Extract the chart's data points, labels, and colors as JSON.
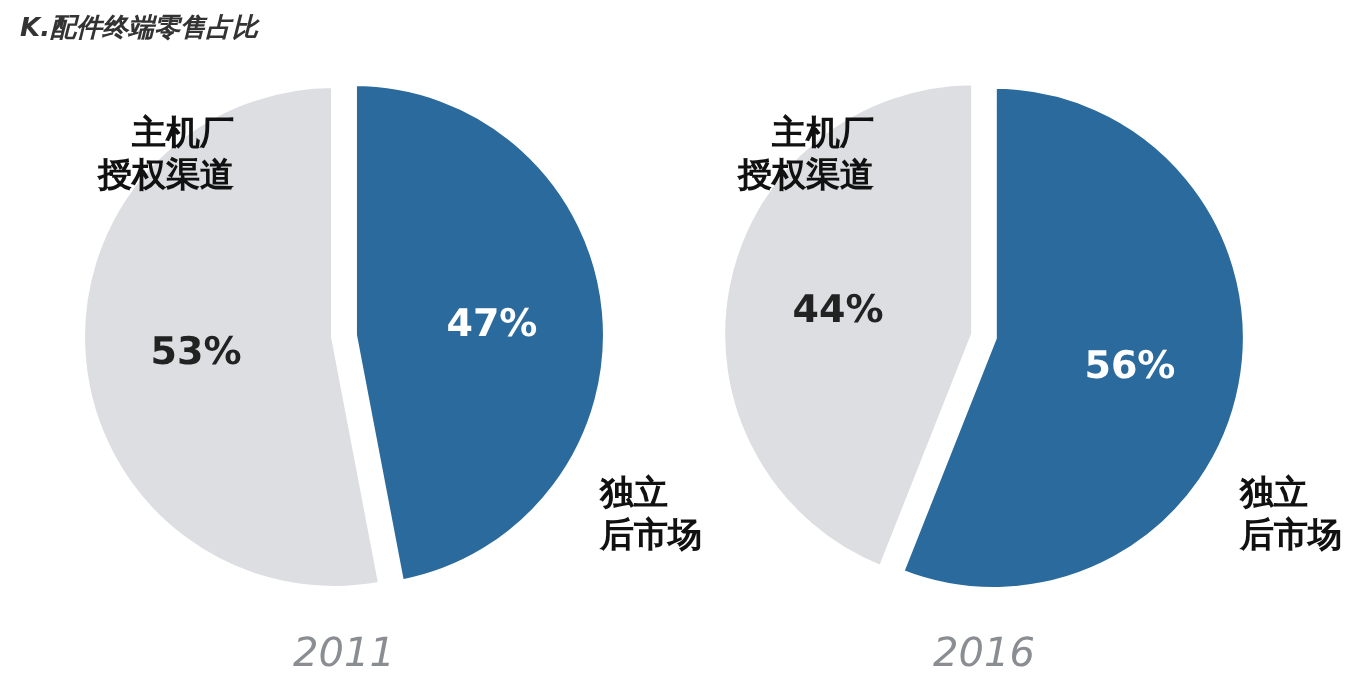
{
  "chart_data": [
    {
      "type": "pie",
      "title": "2011",
      "annotations": [
        "K.配件终端零售占比"
      ],
      "categories": [
        "主机厂授权渠道",
        "独立后市场"
      ],
      "values": [
        53,
        47
      ],
      "value_labels": [
        "53%",
        "47%"
      ],
      "colors": [
        "#dcdee1",
        "#2b6a9c"
      ]
    },
    {
      "type": "pie",
      "title": "2016",
      "categories": [
        "主机厂授权渠道",
        "独立后市场"
      ],
      "values": [
        44,
        56
      ],
      "value_labels": [
        "44%",
        "56%"
      ],
      "colors": [
        "#dcdee1",
        "#2b6a9c"
      ]
    }
  ]
}
